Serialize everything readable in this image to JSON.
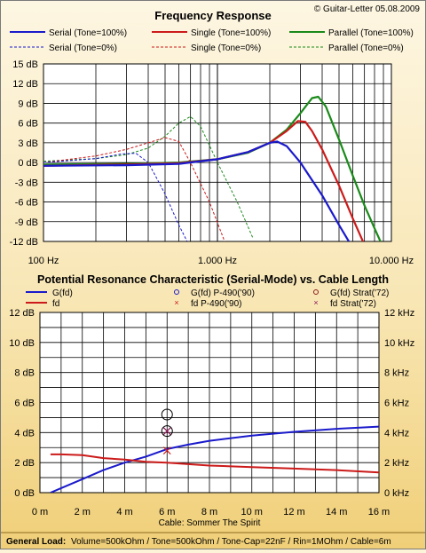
{
  "copyright": "© Guitar-Letter 05.08.2009",
  "footer": {
    "label": "General Load:",
    "text": "Volume=500kOhm / Tone=500kOhm / Tone-Cap=22nF / Rin=1MOhm / Cable=6m"
  },
  "chart_data": [
    {
      "type": "line",
      "title": "Frequency Response",
      "xscale": "log",
      "xlim": [
        100,
        10000
      ],
      "ylim": [
        -12,
        15
      ],
      "xticks": [
        100,
        1000,
        10000
      ],
      "xtick_labels": [
        "100 Hz",
        "1.000 Hz",
        "10.000 Hz"
      ],
      "yticks": [
        15,
        12,
        9,
        6,
        3,
        0,
        -3,
        -6,
        -9,
        -12
      ],
      "ytick_labels": [
        "15 dB",
        "12 dB",
        "9 dB",
        "6 dB",
        "3 dB",
        "0 dB",
        "-3 dB",
        "-6 dB",
        "-9 dB",
        "-12 dB"
      ],
      "grid": true,
      "legend": "top",
      "series": [
        {
          "name": "Serial (Tone=100%)",
          "color": "#1a1acc",
          "dash": false,
          "x": [
            100,
            300,
            600,
            1000,
            1500,
            2000,
            2200,
            2500,
            3000,
            4000,
            5000,
            6000
          ],
          "y": [
            -0.5,
            -0.4,
            -0.2,
            0.5,
            1.6,
            3.0,
            3.2,
            2.5,
            0.0,
            -5.0,
            -9.5,
            -13.0
          ]
        },
        {
          "name": "Single (Tone=100%)",
          "color": "#cc1a1a",
          "dash": false,
          "x": [
            100,
            300,
            600,
            1000,
            1500,
            2000,
            2500,
            2900,
            3200,
            3500,
            4000,
            5000,
            6000,
            7000
          ],
          "y": [
            -0.5,
            -0.3,
            -0.1,
            0.5,
            1.6,
            3.0,
            4.8,
            6.3,
            6.2,
            4.8,
            2.0,
            -3.5,
            -8.5,
            -12.5
          ]
        },
        {
          "name": "Parallel (Tone=100%)",
          "color": "#1a8a1a",
          "dash": false,
          "x": [
            100,
            300,
            600,
            1000,
            1500,
            2000,
            2500,
            3000,
            3500,
            3800,
            4200,
            5000,
            6000,
            7000,
            8000,
            9000
          ],
          "y": [
            -0.3,
            -0.2,
            0.0,
            0.5,
            1.5,
            3.0,
            5.0,
            7.5,
            9.8,
            10.0,
            8.5,
            3.5,
            -2.0,
            -6.5,
            -10.0,
            -13.0
          ]
        },
        {
          "name": "Serial (Tone=0%)",
          "color": "#1a1acc",
          "dash": true,
          "x": [
            100,
            200,
            280,
            340,
            400,
            450,
            500,
            600,
            700
          ],
          "y": [
            0.0,
            0.6,
            1.3,
            1.4,
            0.0,
            -2.5,
            -4.8,
            -9.5,
            -13.0
          ]
        },
        {
          "name": "Single (Tone=0%)",
          "color": "#cc1a1a",
          "dash": true,
          "x": [
            100,
            200,
            300,
            400,
            500,
            600,
            700,
            900,
            1100
          ],
          "y": [
            0.0,
            1.0,
            2.0,
            3.0,
            3.8,
            3.2,
            0.0,
            -6.0,
            -12.0
          ]
        },
        {
          "name": "Parallel (Tone=0%)",
          "color": "#1a8a1a",
          "dash": true,
          "x": [
            100,
            200,
            300,
            400,
            500,
            600,
            700,
            800,
            1000,
            1300,
            1600
          ],
          "y": [
            0.2,
            0.6,
            1.2,
            2.2,
            4.0,
            6.0,
            7.0,
            5.5,
            0.0,
            -6.0,
            -11.5
          ]
        }
      ]
    },
    {
      "type": "line",
      "title": "Potential Resonance Characteristic (Serial-Mode) vs. Cable Length",
      "xlabel": "Cable: Sommer The Spirit",
      "xlim": [
        0,
        16
      ],
      "ylim": [
        0,
        12
      ],
      "ylim_right": [
        0,
        12
      ],
      "xticks": [
        0,
        2,
        4,
        6,
        8,
        10,
        12,
        14,
        16
      ],
      "xtick_labels": [
        "0 m",
        "2 m",
        "4 m",
        "6 m",
        "8 m",
        "10 m",
        "12 m",
        "14 m",
        "16 m"
      ],
      "yticks": [
        12,
        10,
        8,
        6,
        4,
        2,
        0
      ],
      "ytick_labels": [
        "12 dB",
        "10 dB",
        "8 dB",
        "6 dB",
        "4 dB",
        "2 dB",
        "0 dB"
      ],
      "ytick_labels_right": [
        "12 kHz",
        "10 kHz",
        "8 kHz",
        "6 kHz",
        "4 kHz",
        "2 kHz",
        "0 kHz"
      ],
      "grid": true,
      "legend": "top",
      "series": [
        {
          "name": "G(fd)",
          "color": "#1a1acc",
          "x": [
            0.5,
            1,
            2,
            3,
            4,
            5,
            6,
            7,
            8,
            10,
            12,
            14,
            16
          ],
          "y": [
            0.0,
            0.3,
            0.9,
            1.5,
            2.0,
            2.4,
            2.9,
            3.2,
            3.45,
            3.8,
            4.05,
            4.25,
            4.4
          ]
        },
        {
          "name": "fd",
          "color": "#cc1a1a",
          "x": [
            0.5,
            1,
            2,
            3,
            4,
            5,
            6,
            8,
            10,
            12,
            14,
            16
          ],
          "y": [
            2.55,
            2.55,
            2.5,
            2.3,
            2.2,
            2.05,
            2.0,
            1.8,
            1.7,
            1.6,
            1.5,
            1.35
          ]
        }
      ],
      "markers": [
        {
          "name": "G(fd) P-490('90)",
          "color": "#1a1acc",
          "symbol": "circle",
          "x": 6,
          "y": 5.2
        },
        {
          "name": "G(fd) Strat('72)",
          "color": "#8b1a1a",
          "symbol": "circle",
          "x": 6,
          "y": 4.1
        },
        {
          "name": "fd P-490('90)",
          "color": "#cc1a1a",
          "symbol": "x",
          "x": 6,
          "y": 2.8
        },
        {
          "name": "fd Strat('72)",
          "color": "#8b1a5a",
          "symbol": "x",
          "x": 6,
          "y": 4.1
        }
      ]
    }
  ]
}
